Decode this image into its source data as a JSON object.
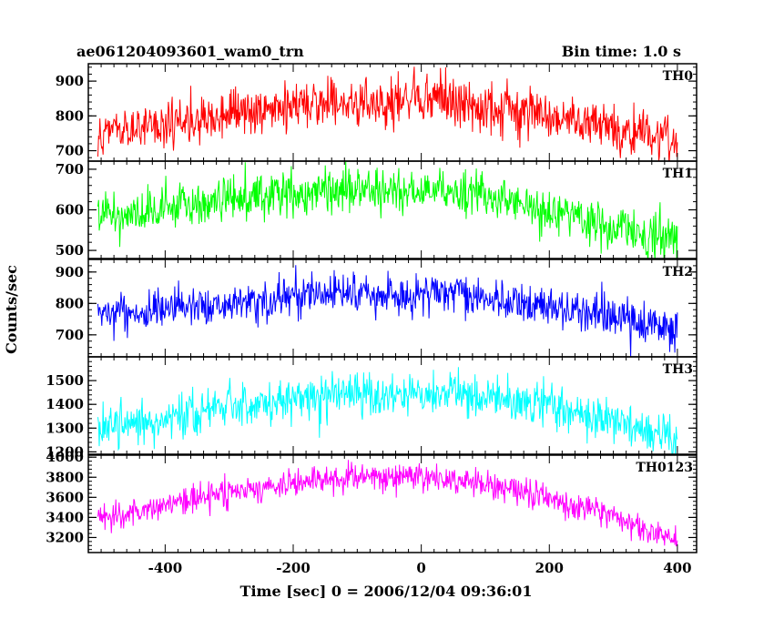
{
  "header": {
    "title": "ae061204093601_wam0_trn",
    "bin_time": "Bin time: 1.0 s"
  },
  "chart_data": {
    "type": "line",
    "xlabel": "Time [sec] 0 = 2006/12/04 09:36:01",
    "ylabel": "Counts/sec",
    "xlim": [
      -520,
      430
    ],
    "xticks": [
      -400,
      -200,
      0,
      200,
      400
    ],
    "x_range": [
      -505,
      400
    ],
    "panels": [
      {
        "name": "TH0",
        "color": "#ff0000",
        "ylim": [
          670,
          950
        ],
        "yticks": [
          700,
          800,
          900
        ],
        "trend": [
          [
            -505,
            760
          ],
          [
            -400,
            770
          ],
          [
            -300,
            800
          ],
          [
            -200,
            830
          ],
          [
            -100,
            840
          ],
          [
            0,
            845
          ],
          [
            100,
            825
          ],
          [
            200,
            800
          ],
          [
            300,
            770
          ],
          [
            400,
            720
          ]
        ],
        "noise": 35
      },
      {
        "name": "TH1",
        "color": "#00ff00",
        "ylim": [
          480,
          720
        ],
        "yticks": [
          500,
          600,
          700
        ],
        "trend": [
          [
            -505,
            580
          ],
          [
            -400,
            600
          ],
          [
            -300,
            630
          ],
          [
            -200,
            640
          ],
          [
            -100,
            650
          ],
          [
            0,
            650
          ],
          [
            100,
            630
          ],
          [
            200,
            600
          ],
          [
            300,
            560
          ],
          [
            400,
            530
          ]
        ],
        "noise": 28
      },
      {
        "name": "TH2",
        "color": "#0000ff",
        "ylim": [
          630,
          940
        ],
        "yticks": [
          700,
          800,
          900
        ],
        "trend": [
          [
            -505,
            770
          ],
          [
            -400,
            780
          ],
          [
            -300,
            800
          ],
          [
            -200,
            820
          ],
          [
            -100,
            830
          ],
          [
            0,
            835
          ],
          [
            100,
            820
          ],
          [
            200,
            790
          ],
          [
            300,
            760
          ],
          [
            400,
            710
          ]
        ],
        "noise": 32
      },
      {
        "name": "TH3",
        "color": "#00ffff",
        "ylim": [
          1190,
          1600
        ],
        "yticks": [
          1200,
          1300,
          1400,
          1500
        ],
        "trend": [
          [
            -505,
            1310
          ],
          [
            -400,
            1340
          ],
          [
            -300,
            1390
          ],
          [
            -200,
            1420
          ],
          [
            -100,
            1440
          ],
          [
            0,
            1450
          ],
          [
            100,
            1430
          ],
          [
            200,
            1390
          ],
          [
            300,
            1330
          ],
          [
            400,
            1250
          ]
        ],
        "noise": 45
      },
      {
        "name": "TH0123",
        "color": "#ff00ff",
        "ylim": [
          3050,
          4020
        ],
        "yticks": [
          3200,
          3400,
          3600,
          3800,
          4000
        ],
        "trend": [
          [
            -505,
            3380
          ],
          [
            -400,
            3520
          ],
          [
            -300,
            3650
          ],
          [
            -200,
            3740
          ],
          [
            -100,
            3800
          ],
          [
            0,
            3800
          ],
          [
            100,
            3730
          ],
          [
            200,
            3600
          ],
          [
            300,
            3420
          ],
          [
            400,
            3170
          ]
        ],
        "noise": 70
      }
    ]
  }
}
